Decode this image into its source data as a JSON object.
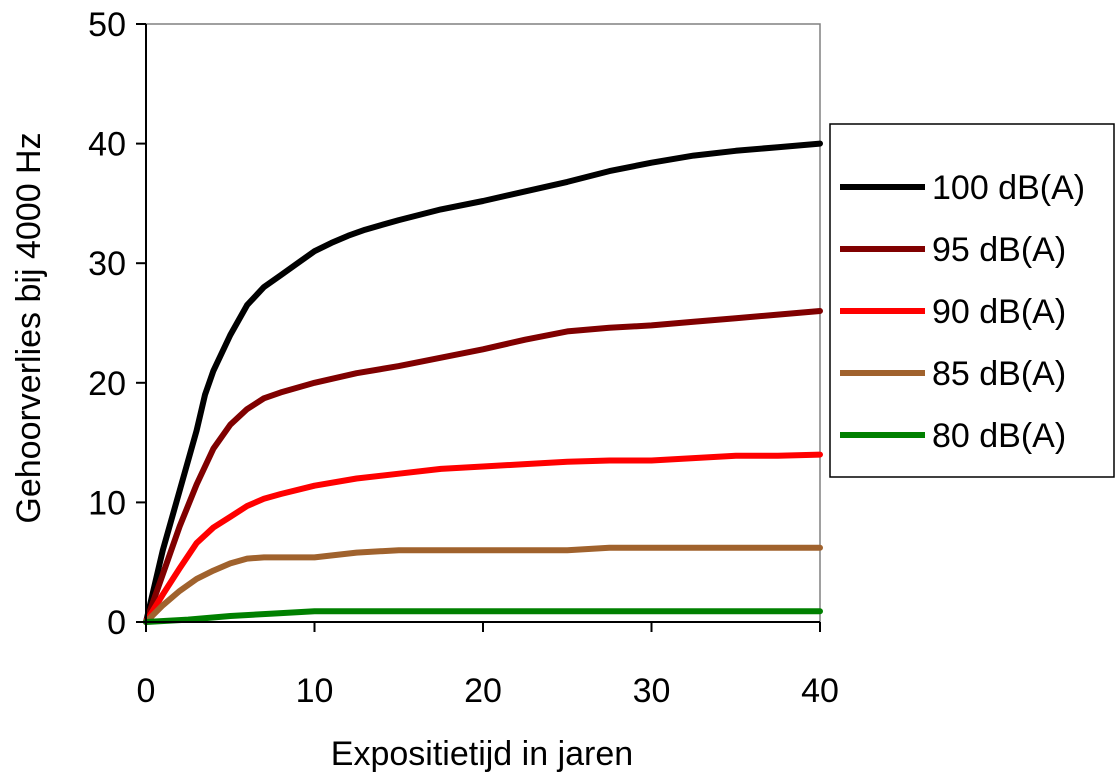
{
  "chart_data": {
    "type": "line",
    "title": "",
    "xlabel": "Expositietijd in jaren",
    "ylabel": "Gehoorverlies bij 4000 Hz",
    "xlim": [
      0,
      40
    ],
    "ylim": [
      0,
      50
    ],
    "x_ticks": [
      "0",
      "10",
      "20",
      "30",
      "40"
    ],
    "y_ticks": [
      "0",
      "10",
      "20",
      "30",
      "40",
      "50"
    ],
    "grid": false,
    "legend_position": "right",
    "series": [
      {
        "name": "100 dB(A)",
        "color": "#000000",
        "points": [
          [
            0,
            0
          ],
          [
            1,
            6
          ],
          [
            2,
            11
          ],
          [
            3,
            16
          ],
          [
            3.5,
            19
          ],
          [
            4,
            21
          ],
          [
            5,
            24
          ],
          [
            6,
            26.5
          ],
          [
            7,
            28
          ],
          [
            8,
            29
          ],
          [
            9,
            30
          ],
          [
            10,
            31
          ],
          [
            11,
            31.7
          ],
          [
            12,
            32.3
          ],
          [
            13,
            32.8
          ],
          [
            15,
            33.6
          ],
          [
            17.5,
            34.5
          ],
          [
            20,
            35.2
          ],
          [
            22.5,
            36
          ],
          [
            25,
            36.8
          ],
          [
            27.5,
            37.7
          ],
          [
            30,
            38.4
          ],
          [
            32.5,
            39
          ],
          [
            35,
            39.4
          ],
          [
            37.5,
            39.7
          ],
          [
            40,
            40
          ]
        ]
      },
      {
        "name": "95 dB(A)",
        "color": "#800000",
        "points": [
          [
            0,
            0
          ],
          [
            1,
            4
          ],
          [
            2,
            8
          ],
          [
            3,
            11.5
          ],
          [
            4,
            14.5
          ],
          [
            5,
            16.5
          ],
          [
            6,
            17.8
          ],
          [
            7,
            18.7
          ],
          [
            8,
            19.2
          ],
          [
            10,
            20
          ],
          [
            12.5,
            20.8
          ],
          [
            15,
            21.4
          ],
          [
            17.5,
            22.1
          ],
          [
            20,
            22.8
          ],
          [
            22.5,
            23.6
          ],
          [
            25,
            24.3
          ],
          [
            27.5,
            24.6
          ],
          [
            30,
            24.8
          ],
          [
            32.5,
            25.1
          ],
          [
            35,
            25.4
          ],
          [
            37.5,
            25.7
          ],
          [
            40,
            26
          ]
        ]
      },
      {
        "name": "90 dB(A)",
        "color": "#ff0000",
        "points": [
          [
            0,
            0
          ],
          [
            1,
            2.3
          ],
          [
            2,
            4.5
          ],
          [
            3,
            6.6
          ],
          [
            4,
            7.9
          ],
          [
            5,
            8.8
          ],
          [
            6,
            9.7
          ],
          [
            7,
            10.3
          ],
          [
            8,
            10.7
          ],
          [
            10,
            11.4
          ],
          [
            12.5,
            12
          ],
          [
            15,
            12.4
          ],
          [
            17.5,
            12.8
          ],
          [
            20,
            13
          ],
          [
            22.5,
            13.2
          ],
          [
            25,
            13.4
          ],
          [
            27.5,
            13.5
          ],
          [
            30,
            13.5
          ],
          [
            32.5,
            13.7
          ],
          [
            35,
            13.9
          ],
          [
            37.5,
            13.9
          ],
          [
            40,
            14
          ]
        ]
      },
      {
        "name": "85 dB(A)",
        "color": "#a0622d",
        "points": [
          [
            0,
            0
          ],
          [
            1,
            1.4
          ],
          [
            2,
            2.6
          ],
          [
            3,
            3.6
          ],
          [
            4,
            4.3
          ],
          [
            5,
            4.9
          ],
          [
            6,
            5.3
          ],
          [
            7,
            5.4
          ],
          [
            10,
            5.4
          ],
          [
            12.5,
            5.8
          ],
          [
            15,
            6
          ],
          [
            17.5,
            6
          ],
          [
            20,
            6
          ],
          [
            22.5,
            6
          ],
          [
            25,
            6
          ],
          [
            27.5,
            6.2
          ],
          [
            30,
            6.2
          ],
          [
            35,
            6.2
          ],
          [
            40,
            6.2
          ]
        ]
      },
      {
        "name": "80 dB(A)",
        "color": "#008000",
        "points": [
          [
            0,
            0
          ],
          [
            2.5,
            0.2
          ],
          [
            5,
            0.5
          ],
          [
            7.5,
            0.7
          ],
          [
            10,
            0.9
          ],
          [
            15,
            0.9
          ],
          [
            20,
            0.9
          ],
          [
            25,
            0.9
          ],
          [
            30,
            0.9
          ],
          [
            35,
            0.9
          ],
          [
            40,
            0.9
          ]
        ]
      }
    ]
  }
}
